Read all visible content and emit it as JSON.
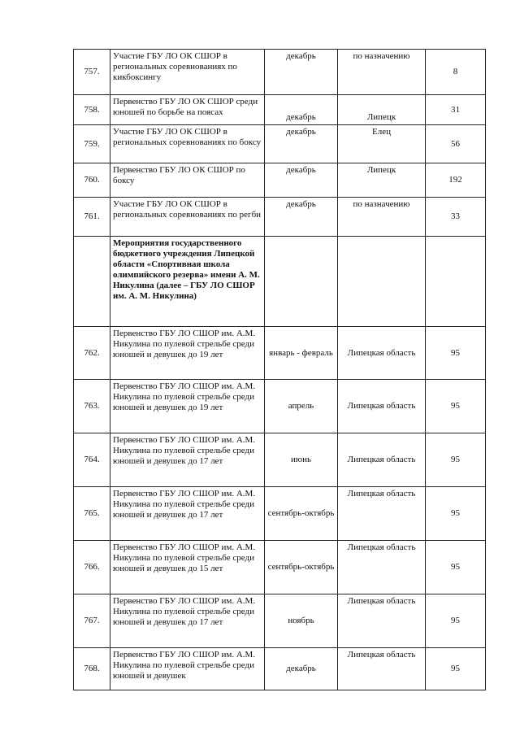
{
  "rows": [
    {
      "num": "757.",
      "name": "Участие ГБУ ЛО ОК СШОР в региональных соревнованиях по кикбоксингу",
      "date": "декабрь",
      "place": "по назначению",
      "count": "8"
    },
    {
      "num": "758.",
      "name": "Первенство ГБУ ЛО ОК СШОР среди юношей по борьбе на поясах",
      "date": "декабрь",
      "place": "Липецк",
      "count": "31"
    },
    {
      "num": "759.",
      "name": "Участие ГБУ ЛО ОК СШОР в региональных соревнованиях по боксу",
      "date": "декабрь",
      "place": "Елец",
      "count": "56"
    },
    {
      "num": "760.",
      "name": "Первенство ГБУ ЛО ОК СШОР по боксу",
      "date": "декабрь",
      "place": "Липецк",
      "count": "192"
    },
    {
      "num": "761.",
      "name": "Участие ГБУ ЛО ОК СШОР в региональных соревнованиях по регби",
      "date": "декабрь",
      "place": "по назначению",
      "count": "33"
    },
    {
      "num": "",
      "name": "Мероприятия государственного бюджетного учреждения Липецкой области «Спортивная школа олимпийского резерва» имени А. М. Никулина (далее – ГБУ ЛО СШОР им. А. М. Никулина)",
      "date": "",
      "place": "",
      "count": ""
    },
    {
      "num": "762.",
      "name": "Первенство ГБУ ЛО СШОР им. А.М. Никулина по пулевой стрельбе среди юношей и девушек до 19 лет",
      "date": "январь - февраль",
      "place": "Липецкая область",
      "count": "95"
    },
    {
      "num": "763.",
      "name": "Первенство ГБУ ЛО СШОР им. А.М. Никулина по пулевой стрельбе среди юношей и девушек до 19 лет",
      "date": "апрель",
      "place": "Липецкая область",
      "count": "95"
    },
    {
      "num": "764.",
      "name": "Первенство ГБУ ЛО СШОР им. А.М. Никулина по пулевой стрельбе среди юношей и девушек до 17 лет",
      "date": "июнь",
      "place": "Липецкая область",
      "count": "95"
    },
    {
      "num": "765.",
      "name": "Первенство ГБУ ЛО СШОР им. А.М. Никулина по пулевой стрельбе среди юношей и девушек до 17 лет",
      "date": "сентябрь-октябрь",
      "place": "Липецкая область",
      "count": "95"
    },
    {
      "num": "766.",
      "name": "Первенство ГБУ ЛО СШОР им. А.М. Никулина по пулевой стрельбе среди юношей и девушек до 15 лет",
      "date": "сентябрь-октябрь",
      "place": "Липецкая область",
      "count": "95"
    },
    {
      "num": "767.",
      "name": "Первенство ГБУ ЛО СШОР им. А.М. Никулина по пулевой стрельбе среди юношей и девушек до 17 лет",
      "date": "ноябрь",
      "place": "Липецкая область",
      "count": "95"
    },
    {
      "num": "768.",
      "name": "Первенство ГБУ ЛО СШОР им. А.М. Никулина по пулевой стрельбе среди юношей и девушек",
      "date": "декабрь",
      "place": "Липецкая область",
      "count": "95"
    }
  ]
}
